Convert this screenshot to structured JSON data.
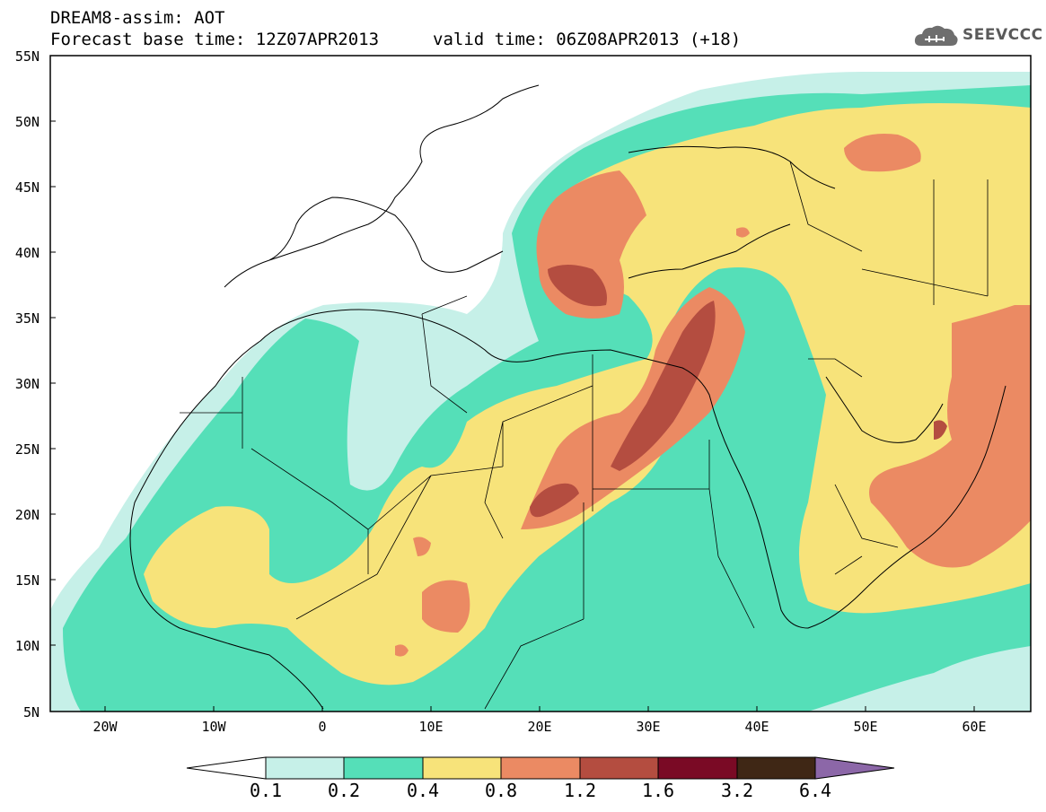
{
  "header": {
    "title": "DREAM8-assim: AOT",
    "base_time": "Forecast base time: 12Z07APR2013",
    "valid_time": "valid time: 06Z08APR2013 (+18)"
  },
  "logo": {
    "text": "SEEVCCC",
    "icon": "cloud-icon"
  },
  "map": {
    "lat_labels": [
      "55N",
      "50N",
      "45N",
      "40N",
      "35N",
      "30N",
      "25N",
      "20N",
      "15N",
      "10N",
      "5N"
    ],
    "lon_labels": [
      "20W",
      "10W",
      "0",
      "10E",
      "20E",
      "30E",
      "40E",
      "50E",
      "60E"
    ]
  },
  "legend": {
    "levels": [
      "0.1",
      "0.2",
      "0.4",
      "0.8",
      "1.2",
      "1.6",
      "3.2",
      "6.4"
    ],
    "colors": [
      "#ffffff",
      "#c6f0e8",
      "#55dfb8",
      "#f7e37a",
      "#eb8a63",
      "#b44d40",
      "#7a0a25",
      "#3f2715",
      "#8c67a8"
    ]
  }
}
